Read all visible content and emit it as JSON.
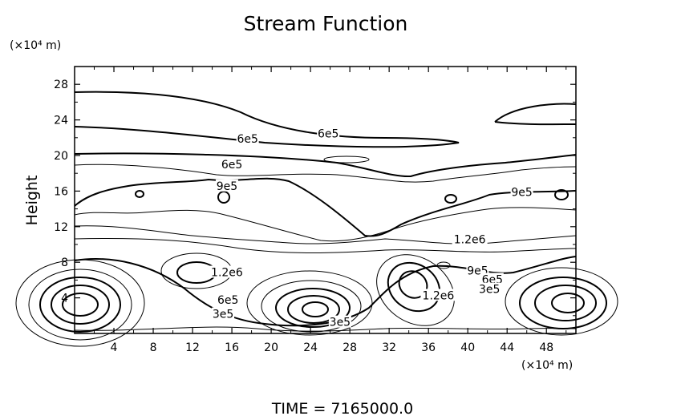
{
  "chart_data": {
    "type": "contour",
    "title": "Stream Function",
    "xlabel": "",
    "ylabel": "Height",
    "x_unit_label": "(×10⁴ m)",
    "y_unit_label": "(×10⁴ m)",
    "xlim": [
      0,
      51
    ],
    "ylim": [
      0,
      30
    ],
    "x_ticks": [
      4,
      8,
      12,
      16,
      20,
      24,
      28,
      32,
      36,
      40,
      44,
      48
    ],
    "y_ticks": [
      4,
      8,
      12,
      16,
      20,
      24,
      28
    ],
    "grid": false,
    "contour_labels": [
      {
        "text": "6e5",
        "x": 25.8,
        "y": 22.4
      },
      {
        "text": "6e5",
        "x": 17.6,
        "y": 21.8
      },
      {
        "text": "6e5",
        "x": 16.0,
        "y": 18.9
      },
      {
        "text": "9e5",
        "x": 15.5,
        "y": 16.5
      },
      {
        "text": "9e5",
        "x": 45.5,
        "y": 15.8
      },
      {
        "text": "1.2e6",
        "x": 40.2,
        "y": 10.5
      },
      {
        "text": "1.2e6",
        "x": 15.5,
        "y": 6.8
      },
      {
        "text": "9e5",
        "x": 41.0,
        "y": 7.0
      },
      {
        "text": "6e5",
        "x": 42.5,
        "y": 6.0
      },
      {
        "text": "3e5",
        "x": 42.2,
        "y": 4.9
      },
      {
        "text": "6e5",
        "x": 15.6,
        "y": 3.7
      },
      {
        "text": "3e5",
        "x": 15.1,
        "y": 2.1
      },
      {
        "text": "1.2e6",
        "x": 37.0,
        "y": 4.2
      },
      {
        "text": "3e5",
        "x": 27.0,
        "y": 1.2
      }
    ],
    "footer": "TIME = 7165000.0"
  }
}
